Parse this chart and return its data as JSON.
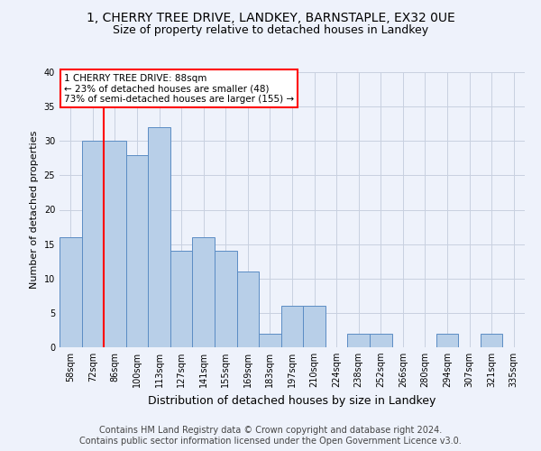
{
  "title1": "1, CHERRY TREE DRIVE, LANDKEY, BARNSTAPLE, EX32 0UE",
  "title2": "Size of property relative to detached houses in Landkey",
  "xlabel": "Distribution of detached houses by size in Landkey",
  "ylabel": "Number of detached properties",
  "categories": [
    "58sqm",
    "72sqm",
    "86sqm",
    "100sqm",
    "113sqm",
    "127sqm",
    "141sqm",
    "155sqm",
    "169sqm",
    "183sqm",
    "197sqm",
    "210sqm",
    "224sqm",
    "238sqm",
    "252sqm",
    "266sqm",
    "280sqm",
    "294sqm",
    "307sqm",
    "321sqm",
    "335sqm"
  ],
  "values": [
    16,
    30,
    30,
    28,
    32,
    14,
    16,
    14,
    11,
    2,
    6,
    6,
    0,
    2,
    2,
    0,
    0,
    2,
    0,
    2,
    0
  ],
  "bar_color": "#b8cfe8",
  "bar_edge_color": "#5b8cc4",
  "vline_x_index": 2,
  "vline_color": "red",
  "annotation_text": "1 CHERRY TREE DRIVE: 88sqm\n← 23% of detached houses are smaller (48)\n73% of semi-detached houses are larger (155) →",
  "annotation_box_color": "white",
  "annotation_box_edge_color": "red",
  "ylim": [
    0,
    40
  ],
  "yticks": [
    0,
    5,
    10,
    15,
    20,
    25,
    30,
    35,
    40
  ],
  "footer1": "Contains HM Land Registry data © Crown copyright and database right 2024.",
  "footer2": "Contains public sector information licensed under the Open Government Licence v3.0.",
  "bg_color": "#eef2fb",
  "plot_bg_color": "#eef2fb",
  "grid_color": "#c8d0e0",
  "title1_fontsize": 10,
  "title2_fontsize": 9,
  "xlabel_fontsize": 9,
  "ylabel_fontsize": 8,
  "footer_fontsize": 7,
  "tick_fontsize": 7,
  "ann_fontsize": 7.5
}
